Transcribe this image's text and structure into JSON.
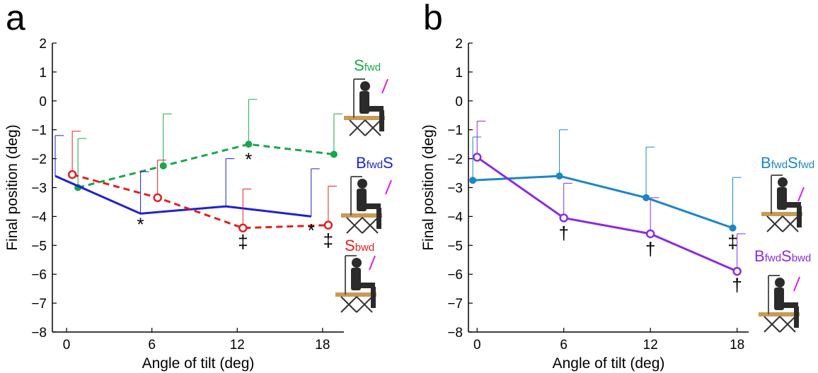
{
  "chart_data": [
    {
      "panel_label": "a",
      "type": "line",
      "xlabel": "Angle of tilt (deg)",
      "ylabel": "Final position (deg)",
      "xticks": [
        "0",
        "6",
        "12",
        "18"
      ],
      "xtick_values": [
        0,
        6,
        12,
        18
      ],
      "yticks": [
        "2",
        "1",
        "0",
        "−1",
        "−2",
        "−3",
        "−4",
        "−5",
        "−6",
        "−7",
        "−8"
      ],
      "ytick_values": [
        2,
        1,
        0,
        -1,
        -2,
        -3,
        -4,
        -5,
        -6,
        -7,
        -8
      ],
      "xlim": [
        -1,
        19.5
      ],
      "ylim": [
        -8,
        2
      ],
      "series": [
        {
          "label_main": "S",
          "label_sub": "fwd",
          "color": "#1aa64a",
          "style": "dashed",
          "marker": "filled",
          "x": [
            0.8,
            6.8,
            12.8,
            18.8
          ],
          "y": [
            -3.0,
            -2.25,
            -1.5,
            -1.85
          ],
          "err_upper": [
            -1.3,
            -0.45,
            0.05,
            -0.45
          ]
        },
        {
          "label_main": "B",
          "label_sub": "fwd",
          "label_end": "S",
          "color": "#1f1fd4",
          "style": "solid",
          "marker": "none",
          "x": [
            -0.8,
            5.2,
            11.2,
            17.2
          ],
          "y": [
            -2.6,
            -3.9,
            -3.65,
            -4.0
          ],
          "err_upper": [
            -1.2,
            -2.45,
            -2.0,
            -2.35
          ]
        },
        {
          "label_main": "S",
          "label_sub": "bwd",
          "color": "#e02020",
          "style": "dashed",
          "marker": "open",
          "x": [
            0.4,
            6.4,
            12.4,
            18.4
          ],
          "y": [
            -2.55,
            -3.35,
            -4.4,
            -4.3
          ],
          "err_upper": [
            -1.05,
            -2.05,
            -3.05,
            -2.95
          ]
        }
      ],
      "annotations": [
        {
          "text": "*",
          "x": 5.2,
          "y": -4.25
        },
        {
          "text": "*",
          "x": 12.8,
          "y": -2.0
        },
        {
          "text": "*",
          "x": 17.2,
          "y": -4.45
        },
        {
          "text": "‡",
          "x": 12.4,
          "y": -4.85
        },
        {
          "text": "‡",
          "x": 18.4,
          "y": -4.8
        }
      ]
    },
    {
      "panel_label": "b",
      "type": "line",
      "xlabel": "Angle of tilt (deg)",
      "ylabel": "Final position (deg)",
      "xticks": [
        "0",
        "6",
        "12",
        "18"
      ],
      "xtick_values": [
        0,
        6,
        12,
        18
      ],
      "yticks": [
        "2",
        "1",
        "0",
        "−1",
        "−2",
        "−3",
        "−4",
        "−5",
        "−6",
        "−7",
        "−8"
      ],
      "ytick_values": [
        2,
        1,
        0,
        -1,
        -2,
        -3,
        -4,
        -5,
        -6,
        -7,
        -8
      ],
      "xlim": [
        -0.6,
        18.8
      ],
      "ylim": [
        -8,
        2
      ],
      "series": [
        {
          "label_main": "B",
          "label_sub": "fwd",
          "label_end": "S",
          "label_sub2": "fwd",
          "color": "#1b87c4",
          "style": "solid",
          "marker": "filled",
          "x": [
            -0.3,
            5.7,
            11.7,
            17.7
          ],
          "y": [
            -2.75,
            -2.6,
            -3.35,
            -4.4
          ],
          "err_upper": [
            -1.25,
            -1.0,
            -1.6,
            -2.65
          ]
        },
        {
          "label_main": "B",
          "label_sub": "fwd",
          "label_end": "S",
          "label_sub2": "bwd",
          "color": "#8a2be2",
          "style": "solid",
          "marker": "open",
          "x": [
            0.0,
            6.0,
            12.0,
            18.0
          ],
          "y": [
            -1.95,
            -4.05,
            -4.6,
            -5.9
          ],
          "err_upper": [
            -0.7,
            -2.85,
            -3.35,
            -4.6
          ]
        }
      ],
      "annotations": [
        {
          "text": "†",
          "x": 6.0,
          "y": -4.55
        },
        {
          "text": "†",
          "x": 12.0,
          "y": -5.1
        },
        {
          "text": "‡",
          "x": 17.7,
          "y": -4.85
        },
        {
          "text": "†",
          "x": 18.0,
          "y": -6.35
        }
      ]
    }
  ]
}
